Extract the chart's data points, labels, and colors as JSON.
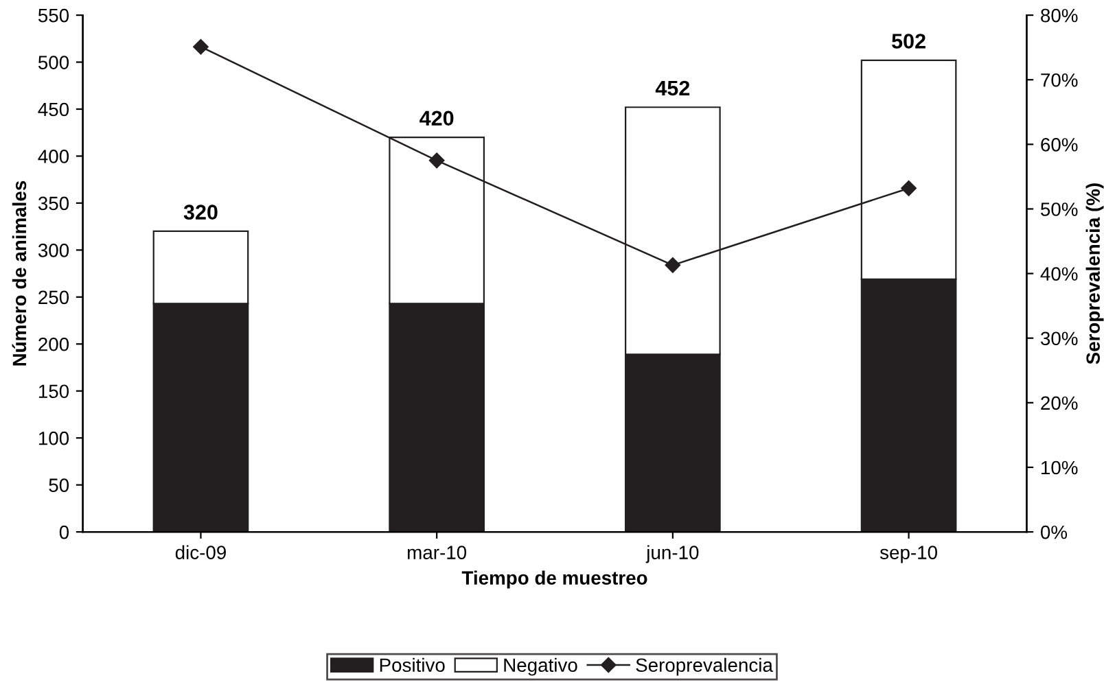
{
  "chart_data": {
    "type": "bar",
    "stacked": true,
    "xlabel": "Tiempo de muestreo",
    "ylabel": "Número de animales",
    "y2label": "Seroprevalencia (%)",
    "categories": [
      "dic-09",
      "mar-10",
      "jun-10",
      "sep-10"
    ],
    "series": [
      {
        "name": "Positivo",
        "color": "#231f20",
        "values": [
          243,
          243,
          189,
          269
        ]
      },
      {
        "name": "Negativo",
        "color": "#ffffff",
        "values": [
          77,
          177,
          263,
          233
        ]
      },
      {
        "name": "Seroprevalencia",
        "type": "line",
        "axis": "y2",
        "color": "#231f20",
        "marker": "diamond",
        "values": [
          75.1,
          57.5,
          41.3,
          53.2
        ]
      }
    ],
    "totals": [
      "320",
      "420",
      "452",
      "502"
    ],
    "ylim": [
      0,
      550
    ],
    "yticks": [
      0,
      50,
      100,
      150,
      200,
      250,
      300,
      350,
      400,
      450,
      500,
      550
    ],
    "y2lim": [
      0,
      80
    ],
    "y2ticks": [
      {
        "value": 0,
        "label": "0%"
      },
      {
        "value": 10,
        "label": "10%"
      },
      {
        "value": 20,
        "label": "20%"
      },
      {
        "value": 30,
        "label": "30%"
      },
      {
        "value": 40,
        "label": "40%"
      },
      {
        "value": 50,
        "label": "50%"
      },
      {
        "value": 60,
        "label": "60%"
      },
      {
        "value": 70,
        "label": "70%"
      },
      {
        "value": 80,
        "label": "80%"
      }
    ],
    "grid": false,
    "legend": "bottom"
  }
}
